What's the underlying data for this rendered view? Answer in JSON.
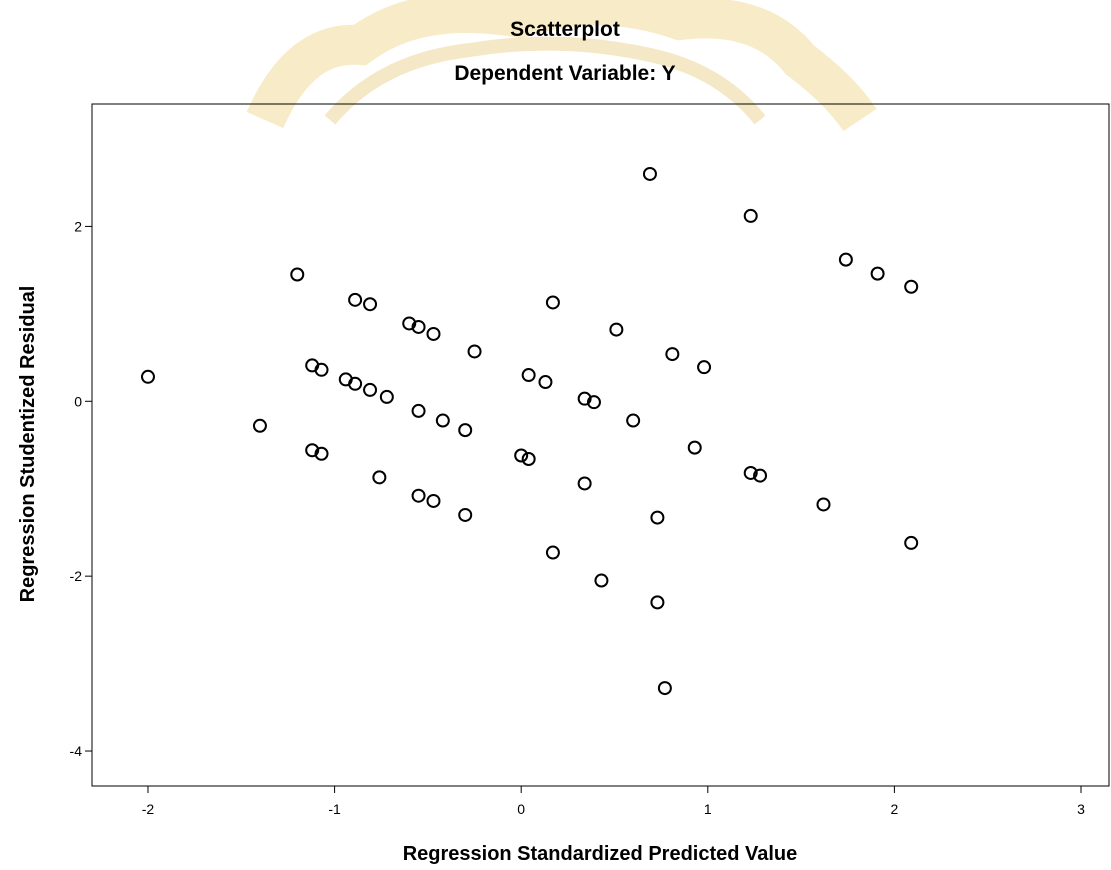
{
  "chart_data": {
    "type": "scatter",
    "title": "Scatterplot",
    "subtitle": "Dependent Variable: Y",
    "xlabel": "Regression Standardized Predicted Value",
    "ylabel": "Regression Studentized Residual",
    "xlim": [
      -2.3,
      3.15
    ],
    "ylim": [
      -4.4,
      3.4
    ],
    "xticks": [
      -2,
      -1,
      0,
      1,
      2,
      3
    ],
    "yticks": [
      -4,
      -2,
      0,
      2
    ],
    "grid": false,
    "legend": "none",
    "marker_color": "#000000",
    "points": [
      {
        "x": -2.0,
        "y": 0.28
      },
      {
        "x": -1.4,
        "y": -0.28
      },
      {
        "x": -1.2,
        "y": 1.45
      },
      {
        "x": -1.12,
        "y": 0.41
      },
      {
        "x": -1.07,
        "y": 0.36
      },
      {
        "x": -1.12,
        "y": -0.56
      },
      {
        "x": -1.07,
        "y": -0.6
      },
      {
        "x": -0.89,
        "y": 1.16
      },
      {
        "x": -0.81,
        "y": 1.11
      },
      {
        "x": -0.94,
        "y": 0.25
      },
      {
        "x": -0.89,
        "y": 0.2
      },
      {
        "x": -0.81,
        "y": 0.13
      },
      {
        "x": -0.72,
        "y": 0.05
      },
      {
        "x": -0.76,
        "y": -0.87
      },
      {
        "x": -0.6,
        "y": 0.89
      },
      {
        "x": -0.55,
        "y": 0.85
      },
      {
        "x": -0.47,
        "y": 0.77
      },
      {
        "x": -0.55,
        "y": -0.11
      },
      {
        "x": -0.42,
        "y": -0.22
      },
      {
        "x": -0.55,
        "y": -1.08
      },
      {
        "x": -0.47,
        "y": -1.14
      },
      {
        "x": -0.25,
        "y": 0.57
      },
      {
        "x": -0.3,
        "y": -0.33
      },
      {
        "x": -0.3,
        "y": -1.3
      },
      {
        "x": 0.04,
        "y": 0.3
      },
      {
        "x": 0.13,
        "y": 0.22
      },
      {
        "x": 0.17,
        "y": 1.13
      },
      {
        "x": 0.0,
        "y": -0.62
      },
      {
        "x": 0.04,
        "y": -0.66
      },
      {
        "x": 0.17,
        "y": -1.73
      },
      {
        "x": 0.34,
        "y": 0.03
      },
      {
        "x": 0.39,
        "y": -0.01
      },
      {
        "x": 0.34,
        "y": -0.94
      },
      {
        "x": 0.43,
        "y": -2.05
      },
      {
        "x": 0.51,
        "y": 0.82
      },
      {
        "x": 0.6,
        "y": -0.22
      },
      {
        "x": 0.69,
        "y": 2.6
      },
      {
        "x": 0.73,
        "y": -1.33
      },
      {
        "x": 0.73,
        "y": -2.3
      },
      {
        "x": 0.77,
        "y": -3.28
      },
      {
        "x": 0.81,
        "y": 0.54
      },
      {
        "x": 0.93,
        "y": -0.53
      },
      {
        "x": 0.98,
        "y": 0.39
      },
      {
        "x": 1.23,
        "y": 2.12
      },
      {
        "x": 1.23,
        "y": -0.82
      },
      {
        "x": 1.28,
        "y": -0.85
      },
      {
        "x": 1.62,
        "y": -1.18
      },
      {
        "x": 1.74,
        "y": 1.62
      },
      {
        "x": 1.91,
        "y": 1.46
      },
      {
        "x": 2.09,
        "y": 1.31
      },
      {
        "x": 2.09,
        "y": -1.62
      }
    ]
  }
}
